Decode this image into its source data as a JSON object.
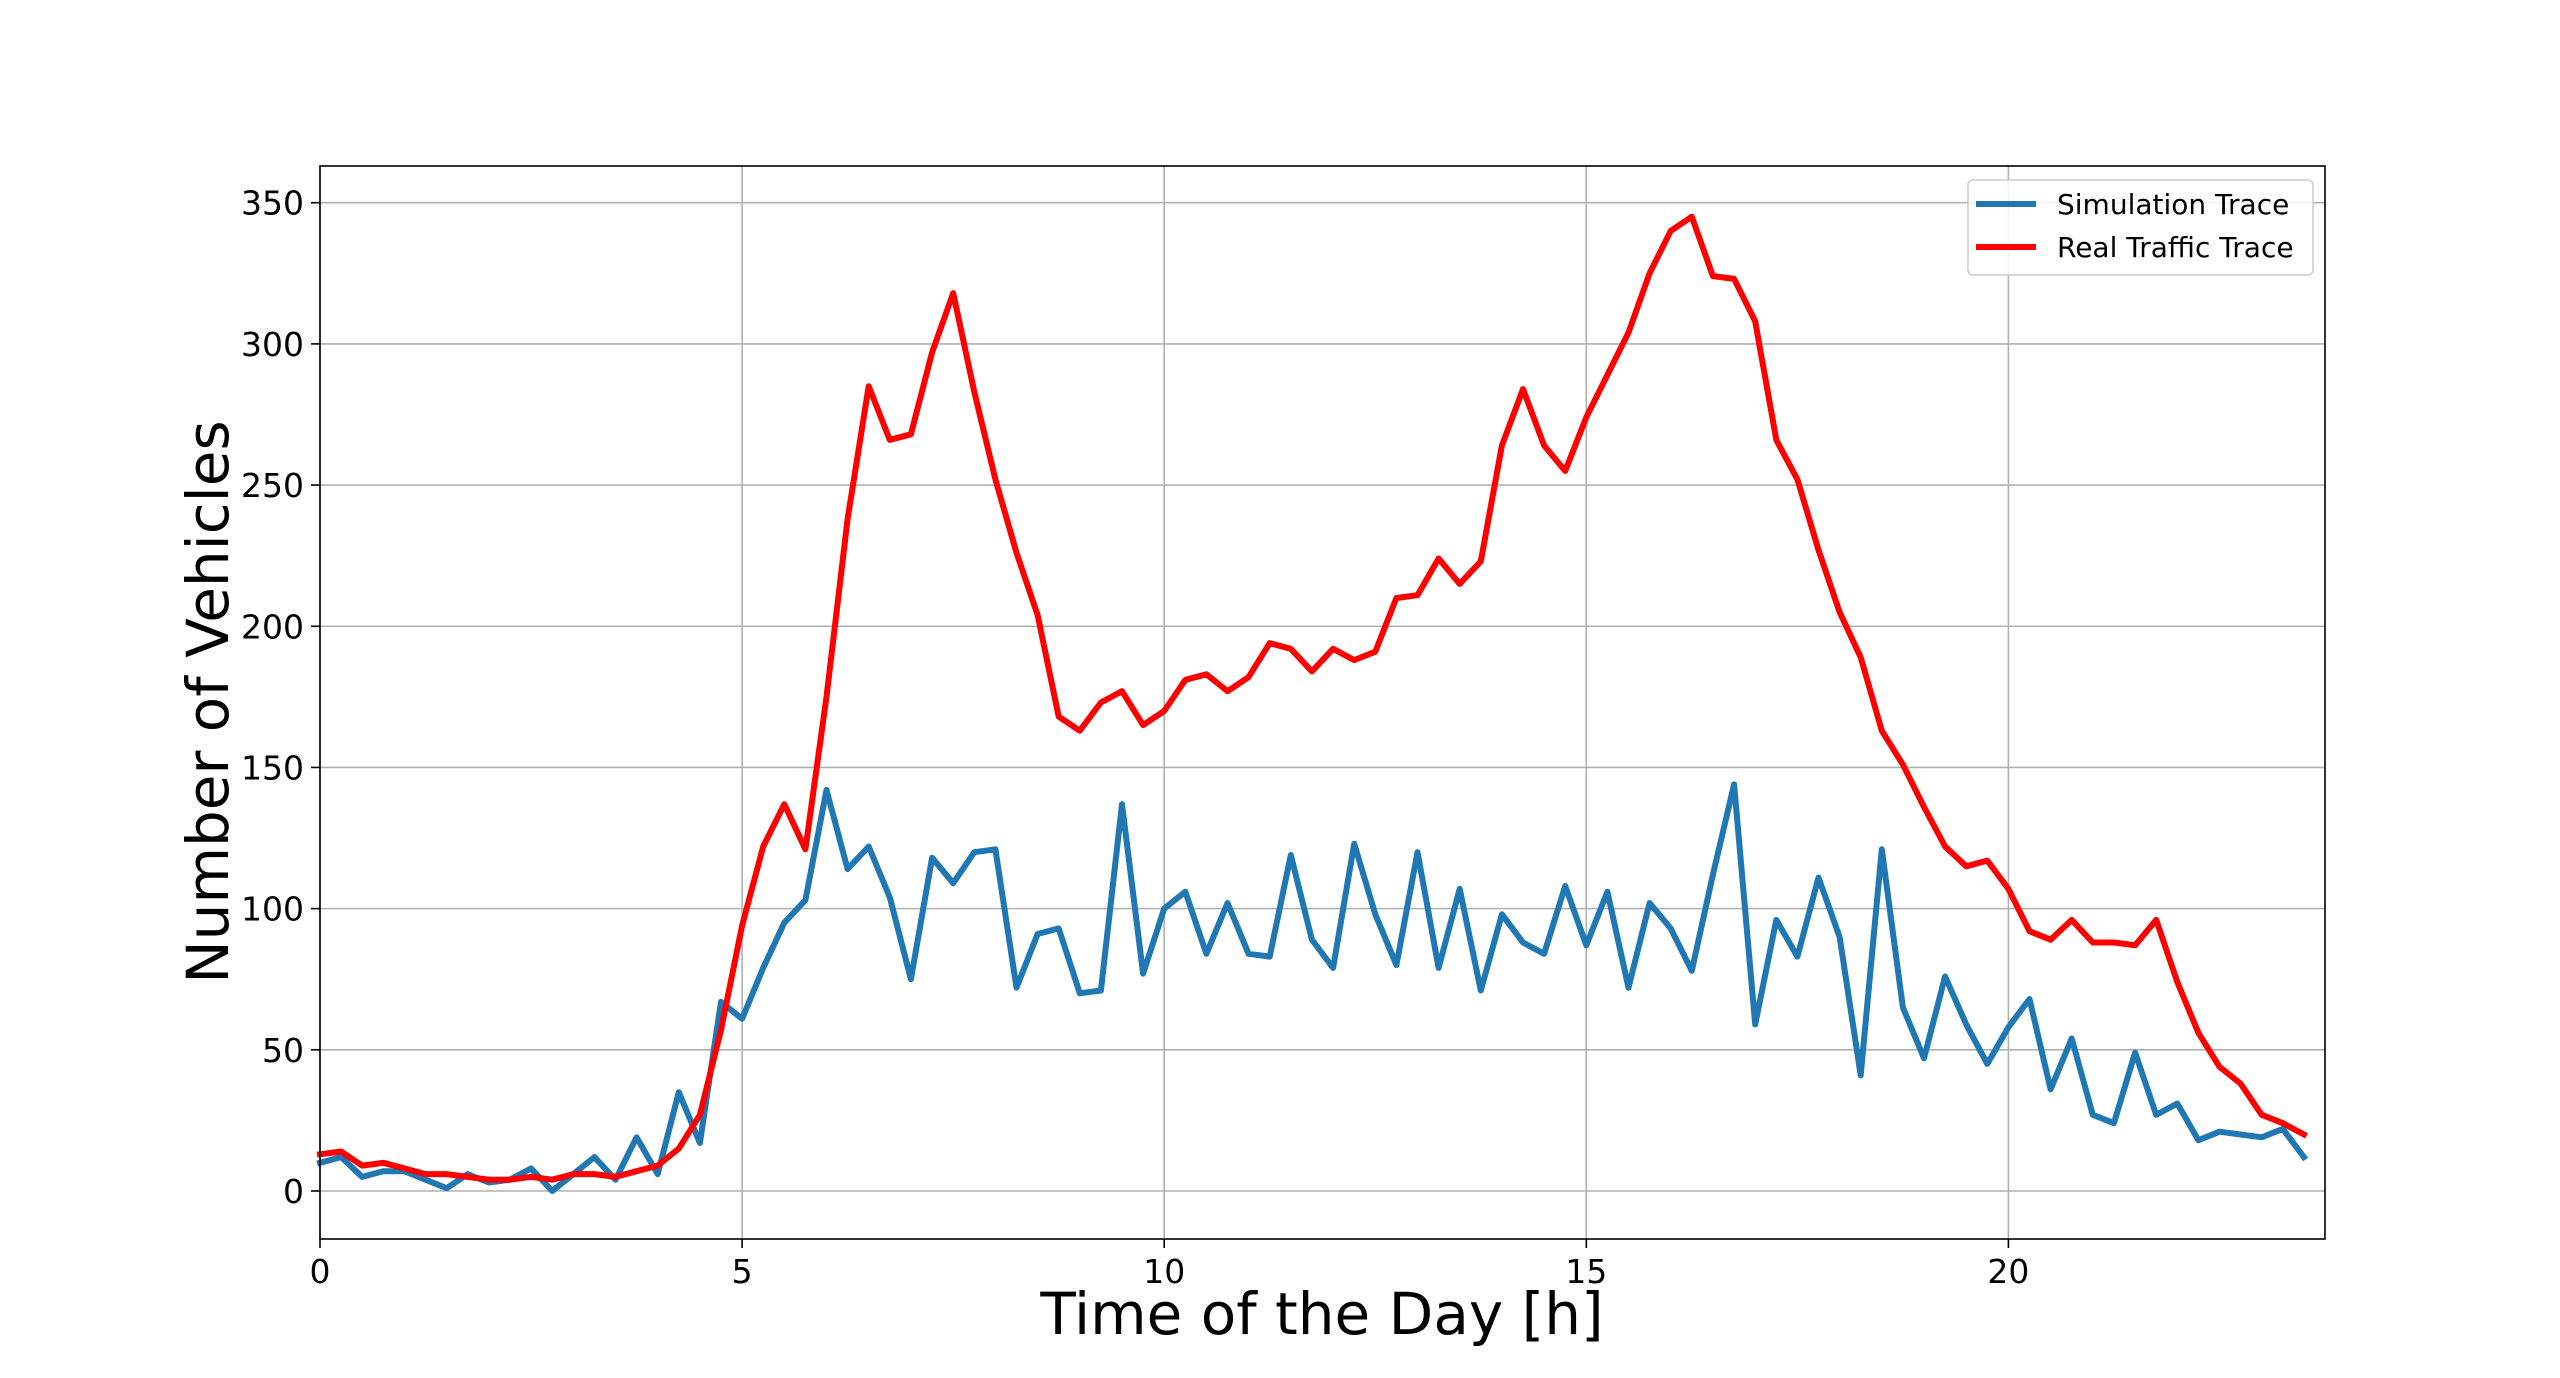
{
  "chart_data": {
    "type": "line",
    "title": "",
    "xlabel": "Time of the Day [h]",
    "ylabel": "Number of Vehicles",
    "xlim": [
      0,
      23.75
    ],
    "ylim": [
      -17,
      363
    ],
    "xticks": [
      0,
      5,
      10,
      15,
      20
    ],
    "yticks": [
      0,
      50,
      100,
      150,
      200,
      250,
      300,
      350
    ],
    "grid": true,
    "legend_position": "top-right",
    "x": [
      0,
      0.25,
      0.5,
      0.75,
      1,
      1.25,
      1.5,
      1.75,
      2,
      2.25,
      2.5,
      2.75,
      3,
      3.25,
      3.5,
      3.75,
      4,
      4.25,
      4.5,
      4.75,
      5,
      5.25,
      5.5,
      5.75,
      6,
      6.25,
      6.5,
      6.75,
      7,
      7.25,
      7.5,
      7.75,
      8,
      8.25,
      8.5,
      8.75,
      9,
      9.25,
      9.5,
      9.75,
      10,
      10.25,
      10.5,
      10.75,
      11,
      11.25,
      11.5,
      11.75,
      12,
      12.25,
      12.5,
      12.75,
      13,
      13.25,
      13.5,
      13.75,
      14,
      14.25,
      14.5,
      14.75,
      15,
      15.25,
      15.5,
      15.75,
      16,
      16.25,
      16.5,
      16.75,
      17,
      17.25,
      17.5,
      17.75,
      18,
      18.25,
      18.5,
      18.75,
      19,
      19.25,
      19.5,
      19.75,
      20,
      20.25,
      20.5,
      20.75,
      21,
      21.25,
      21.5,
      21.75,
      22,
      22.25,
      22.5,
      22.75,
      23,
      23.25,
      23.5
    ],
    "series": [
      {
        "name": "Simulation Trace",
        "color": "#1f77b4",
        "values": [
          10,
          12,
          5,
          7,
          7,
          4,
          1,
          6,
          3,
          4,
          8,
          0,
          6,
          12,
          4,
          19,
          6,
          35,
          17,
          67,
          61,
          79,
          95,
          103,
          142,
          114,
          122,
          104,
          75,
          118,
          109,
          120,
          121,
          72,
          91,
          93,
          70,
          71,
          137,
          77,
          100,
          106,
          84,
          102,
          84,
          83,
          119,
          89,
          79,
          123,
          98,
          80,
          120,
          79,
          107,
          71,
          98,
          88,
          84,
          108,
          87,
          106,
          72,
          102,
          93,
          78,
          112,
          144,
          59,
          96,
          83,
          111,
          90,
          41,
          121,
          65,
          47,
          76,
          59,
          45,
          58,
          68,
          36,
          54,
          27,
          24,
          49,
          27,
          31,
          18,
          21,
          20,
          19,
          22,
          12
        ]
      },
      {
        "name": "Real Traffic Trace",
        "color": "#ff0000",
        "values": [
          13,
          14,
          9,
          10,
          8,
          6,
          6,
          5,
          4,
          4,
          5,
          4,
          6,
          6,
          5,
          7,
          9,
          15,
          27,
          57,
          94,
          122,
          137,
          121,
          175,
          238,
          285,
          266,
          268,
          297,
          318,
          283,
          252,
          226,
          204,
          168,
          163,
          173,
          177,
          165,
          170,
          181,
          183,
          177,
          182,
          194,
          192,
          184,
          192,
          188,
          191,
          210,
          211,
          224,
          215,
          223,
          264,
          284,
          264,
          255,
          274,
          289,
          304,
          325,
          340,
          345,
          324,
          323,
          308,
          266,
          252,
          227,
          205,
          189,
          163,
          151,
          136,
          122,
          115,
          117,
          107,
          92,
          89,
          96,
          88,
          88,
          87,
          96,
          74,
          56,
          44,
          38,
          27,
          24,
          20
        ]
      }
    ]
  }
}
